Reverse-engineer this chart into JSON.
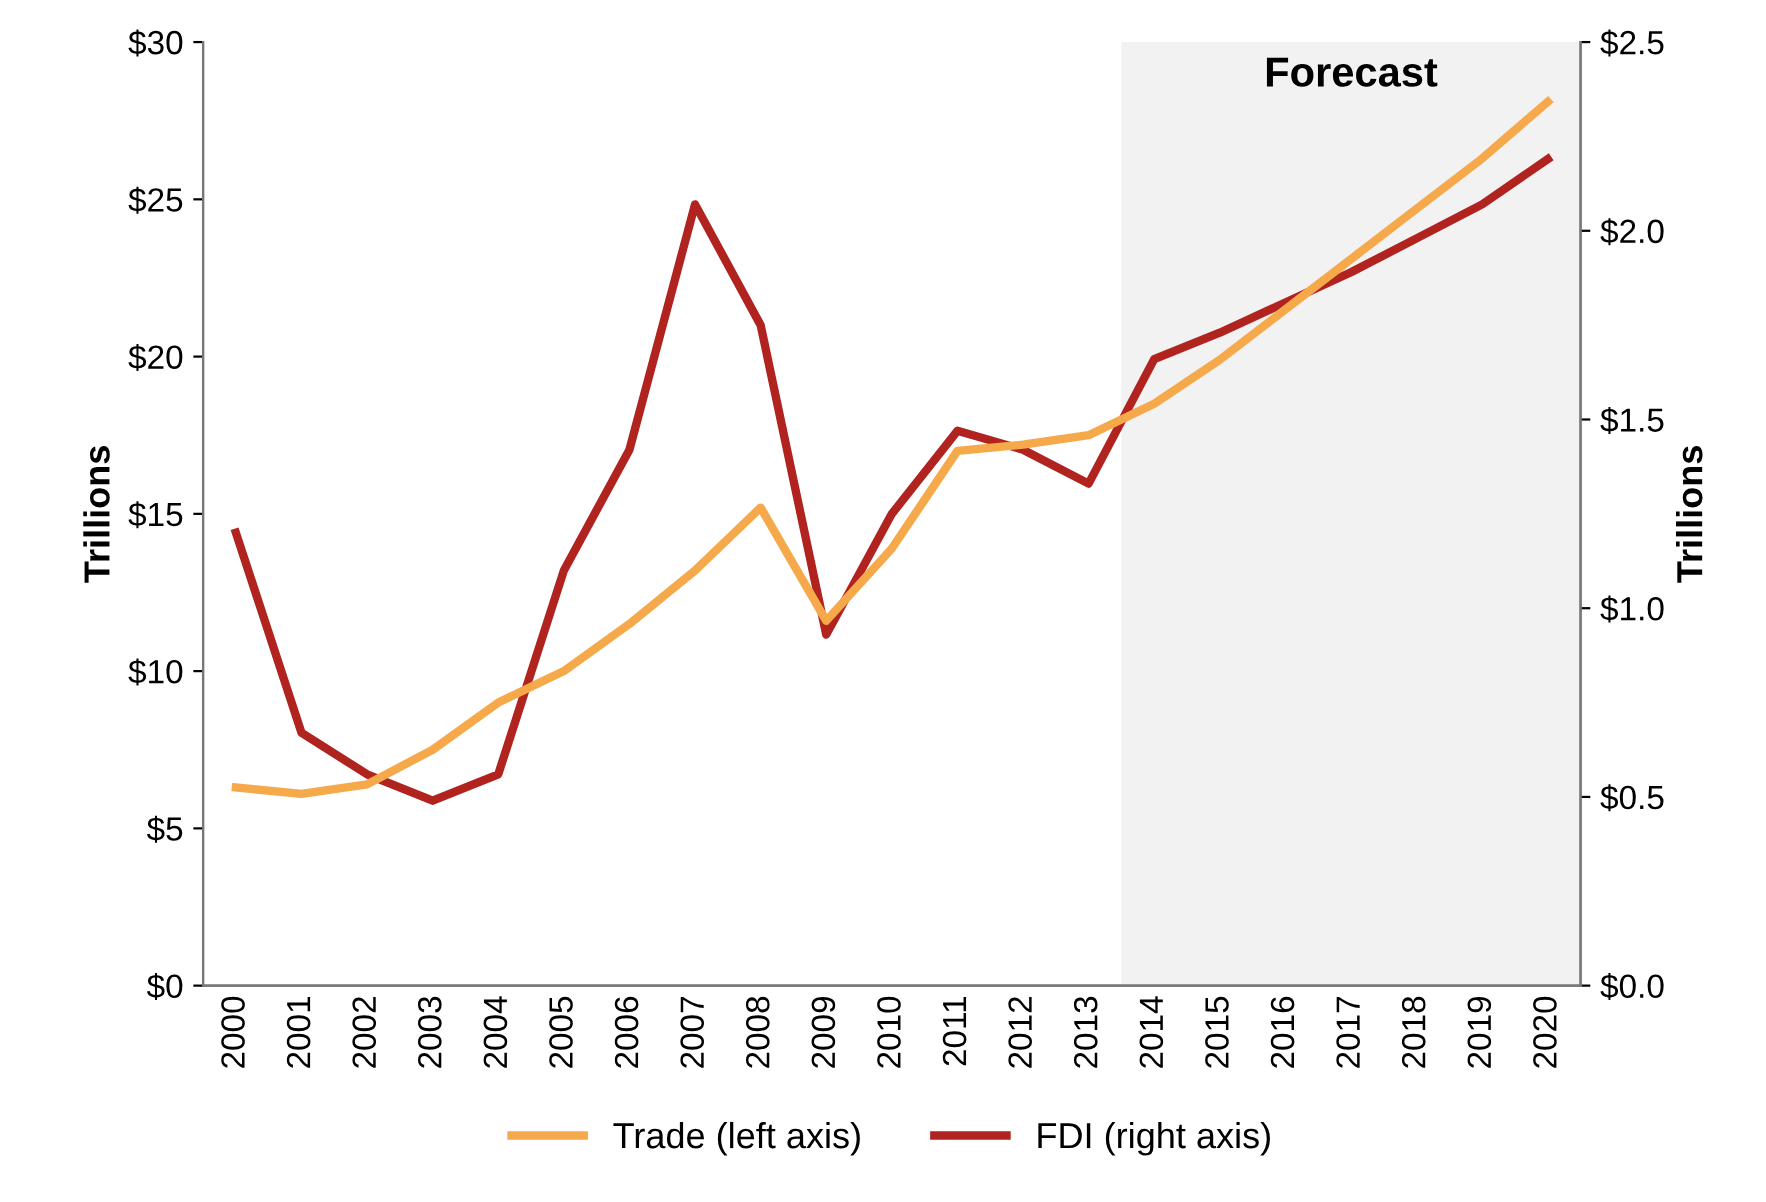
{
  "chart_data": {
    "type": "line",
    "ylabel": "Trillions",
    "y2label": "Trillions",
    "categories": [
      "2000",
      "2001",
      "2002",
      "2003",
      "2004",
      "2005",
      "2006",
      "2007",
      "2008",
      "2009",
      "2010",
      "2011",
      "2012",
      "2013",
      "2014",
      "2015",
      "2016",
      "2017",
      "2018",
      "2019",
      "2020"
    ],
    "series": [
      {
        "name": "Trade (left axis)",
        "color": "#f5a94a",
        "axis": "y",
        "values": [
          6.3,
          6.1,
          6.4,
          7.5,
          9.0,
          10.0,
          11.5,
          13.2,
          15.2,
          11.6,
          13.9,
          17.0,
          17.2,
          17.5,
          18.5,
          19.9,
          21.5,
          23.1,
          24.7,
          26.3,
          28.1
        ]
      },
      {
        "name": "FDI (right axis)",
        "color": "#b0231f",
        "axis": "y2",
        "values": [
          1.2,
          0.67,
          0.56,
          0.49,
          0.56,
          1.1,
          1.42,
          2.07,
          1.75,
          0.93,
          1.25,
          1.47,
          1.42,
          1.33,
          1.66,
          1.73,
          1.81,
          1.89,
          1.98,
          2.07,
          2.19
        ]
      }
    ],
    "ylim": [
      0,
      30
    ],
    "yticks": [
      {
        "value": 0,
        "label": "$0"
      },
      {
        "value": 5,
        "label": "$5"
      },
      {
        "value": 10,
        "label": "$10"
      },
      {
        "value": 15,
        "label": "$15"
      },
      {
        "value": 20,
        "label": "$20"
      },
      {
        "value": 25,
        "label": "$25"
      },
      {
        "value": 30,
        "label": "$30"
      }
    ],
    "y2lim": [
      0,
      2.5
    ],
    "y2ticks": [
      {
        "value": 0,
        "label": "$0.0"
      },
      {
        "value": 0.5,
        "label": "$0.5"
      },
      {
        "value": 1.0,
        "label": "$1.0"
      },
      {
        "value": 1.5,
        "label": "$1.5"
      },
      {
        "value": 2.0,
        "label": "$2.0"
      },
      {
        "value": 2.5,
        "label": "$2.5"
      }
    ],
    "bands": [
      {
        "axis": "x",
        "from": "2014",
        "to": "2020",
        "label": "Forecast",
        "color": "#f2f2f2"
      }
    ],
    "grid": false,
    "legend": "bottom",
    "line_style": "solid"
  }
}
